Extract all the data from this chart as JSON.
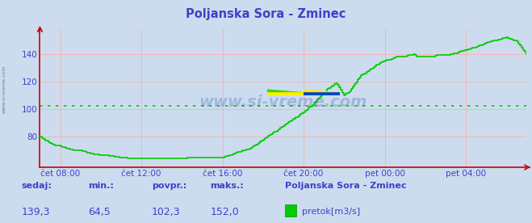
{
  "title": "Poljanska Sora - Zminec",
  "title_color": "#4040cc",
  "bg_color": "#ccdcee",
  "plot_bg_color": "#ccdcee",
  "line_color": "#00cc00",
  "avg_line_color": "#00cc00",
  "avg_value": 102.3,
  "min_value": 64.5,
  "max_value": 152.0,
  "current_value": 139.3,
  "tick_color": "#4040cc",
  "grid_color": "#ffaaaa",
  "x_axis_color": "#cc0000",
  "y_axis_color": "#cc0000",
  "yticks": [
    80,
    100,
    120,
    140
  ],
  "ylim": [
    58,
    158
  ],
  "xtick_labels": [
    "čet 08:00",
    "čet 12:00",
    "čet 16:00",
    "čet 20:00",
    "pet 00:00",
    "pet 04:00"
  ],
  "footer_labels": [
    "sedaj:",
    "min.:",
    "povpr.:",
    "maks.:"
  ],
  "footer_values": [
    "139,3",
    "64,5",
    "102,3",
    "152,0"
  ],
  "footer_series_name": "Poljanska Sora - Zminec",
  "footer_legend_label": "pretok[m3/s]",
  "watermark": "www.si-vreme.com",
  "left_watermark": "www.si-vreme.com",
  "waypoints_t": [
    0,
    0.3,
    0.6,
    1.0,
    1.5,
    2.0,
    2.5,
    3.0,
    3.5,
    4.0,
    4.5,
    5.0,
    5.5,
    6.0,
    6.5,
    7.0,
    7.5,
    8.0,
    8.3,
    8.6,
    8.9,
    9.0,
    9.2,
    9.4,
    9.6,
    9.8,
    10.0,
    10.2,
    10.4,
    10.6,
    10.8,
    11.0,
    11.2,
    11.4,
    11.6,
    11.8,
    12.0,
    12.2,
    12.4,
    12.6,
    12.8,
    13.0,
    13.2,
    13.4,
    13.6,
    13.8,
    14.0,
    14.2,
    14.4,
    14.6,
    14.8,
    15.0,
    15.2,
    15.4,
    15.6,
    15.8,
    16.0,
    16.2,
    16.4,
    16.6,
    16.8,
    17.0,
    17.2,
    17.4,
    17.6,
    17.8,
    18.0,
    18.2,
    18.4,
    18.6,
    18.8,
    19.0,
    19.2,
    19.4,
    19.6,
    19.8,
    20.0,
    20.3,
    20.6,
    21.0,
    21.5,
    22.0,
    22.5,
    23.0,
    23.5,
    24.0
  ],
  "waypoints_v": [
    80,
    77,
    75,
    73,
    71,
    70,
    68,
    67,
    66,
    65,
    64.5,
    64.5,
    64.5,
    64.5,
    64.5,
    64.5,
    65,
    65,
    65,
    65,
    65,
    65,
    66,
    67,
    68,
    69,
    70,
    71,
    72,
    74,
    76,
    78,
    80,
    82,
    84,
    86,
    88,
    90,
    92,
    94,
    96,
    98,
    100,
    103,
    106,
    109,
    112,
    115,
    117,
    119,
    115,
    110,
    112,
    116,
    120,
    124,
    126,
    128,
    130,
    132,
    134,
    135,
    136,
    137,
    138,
    138,
    138,
    139,
    140,
    138,
    138,
    138,
    138,
    138,
    139,
    139,
    139,
    140,
    141,
    143,
    145,
    148,
    150,
    152,
    149,
    140
  ]
}
